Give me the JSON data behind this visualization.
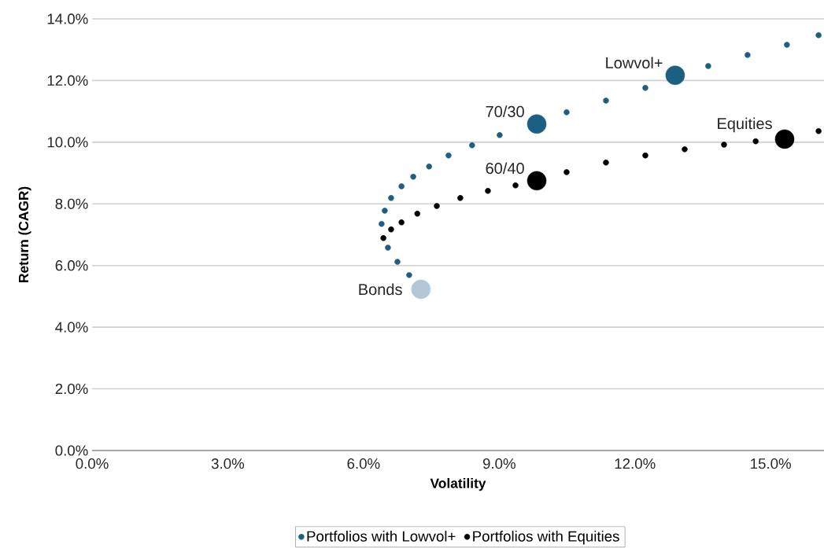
{
  "chart_data": {
    "type": "scatter",
    "xlabel": "Volatility",
    "ylabel": "Return (CAGR)",
    "xlim": [
      0,
      16.18
    ],
    "ylim": [
      0,
      14
    ],
    "xticks": [
      {
        "value": 0,
        "label": "0.0%"
      },
      {
        "value": 3,
        "label": "3.0%"
      },
      {
        "value": 6,
        "label": "6.0%"
      },
      {
        "value": 9,
        "label": "9.0%"
      },
      {
        "value": 12,
        "label": "12.0%"
      },
      {
        "value": 15,
        "label": "15.0%"
      }
    ],
    "yticks": [
      {
        "value": 0,
        "label": "0.0%"
      },
      {
        "value": 2,
        "label": "2.0%"
      },
      {
        "value": 4,
        "label": "4.0%"
      },
      {
        "value": 6,
        "label": "6.0%"
      },
      {
        "value": 8,
        "label": "8.0%"
      },
      {
        "value": 10,
        "label": "10.0%"
      },
      {
        "value": 12,
        "label": "12.0%"
      },
      {
        "value": 14,
        "label": "14.0%"
      }
    ],
    "grid": "y",
    "legend": "bottom",
    "series": [
      {
        "name": "Portfolios with Lowvol+",
        "color": "#1c5f80",
        "marker": "circle",
        "x": [
          7.01,
          6.75,
          6.54,
          6.4,
          6.47,
          6.61,
          6.84,
          7.1,
          7.45,
          7.88,
          8.4,
          9.01,
          10.49,
          11.36,
          12.23,
          13.62,
          14.49,
          15.36,
          16.06
        ],
        "values": [
          5.69,
          6.12,
          6.58,
          7.35,
          7.78,
          8.19,
          8.57,
          8.88,
          9.21,
          9.57,
          9.9,
          10.23,
          10.97,
          11.35,
          11.76,
          12.47,
          12.83,
          13.16,
          13.47
        ]
      },
      {
        "name": "Portfolios with Equities",
        "color": "#000000",
        "marker": "circle",
        "x": [
          6.44,
          6.61,
          6.84,
          7.19,
          7.62,
          8.14,
          8.75,
          9.36,
          10.49,
          11.36,
          12.23,
          13.1,
          13.97,
          14.67,
          16.06
        ],
        "values": [
          6.89,
          7.17,
          7.4,
          7.68,
          7.93,
          8.19,
          8.42,
          8.6,
          9.03,
          9.34,
          9.57,
          9.77,
          9.92,
          10.03,
          10.36
        ]
      },
      {
        "type": "scatter",
        "marker": "circle",
        "colors": [
          "#b3c7d8",
          "#1c5f80",
          "#000000",
          "#1c5f80",
          "#000000"
        ],
        "x": [
          7.27,
          9.83,
          9.83,
          12.89,
          15.31
        ],
        "values": [
          5.23,
          10.59,
          8.75,
          12.17,
          10.1
        ]
      }
    ],
    "annotations": [
      {
        "text": "Bonds",
        "x": 7.27,
        "y": 5.23
      },
      {
        "text": "70/30",
        "x": 9.83,
        "y": 10.59
      },
      {
        "text": "60/40",
        "x": 9.83,
        "y": 8.75
      },
      {
        "text": "Lowvol+",
        "x": 12.89,
        "y": 12.17
      },
      {
        "text": "Equities",
        "x": 15.31,
        "y": 10.1
      }
    ]
  }
}
